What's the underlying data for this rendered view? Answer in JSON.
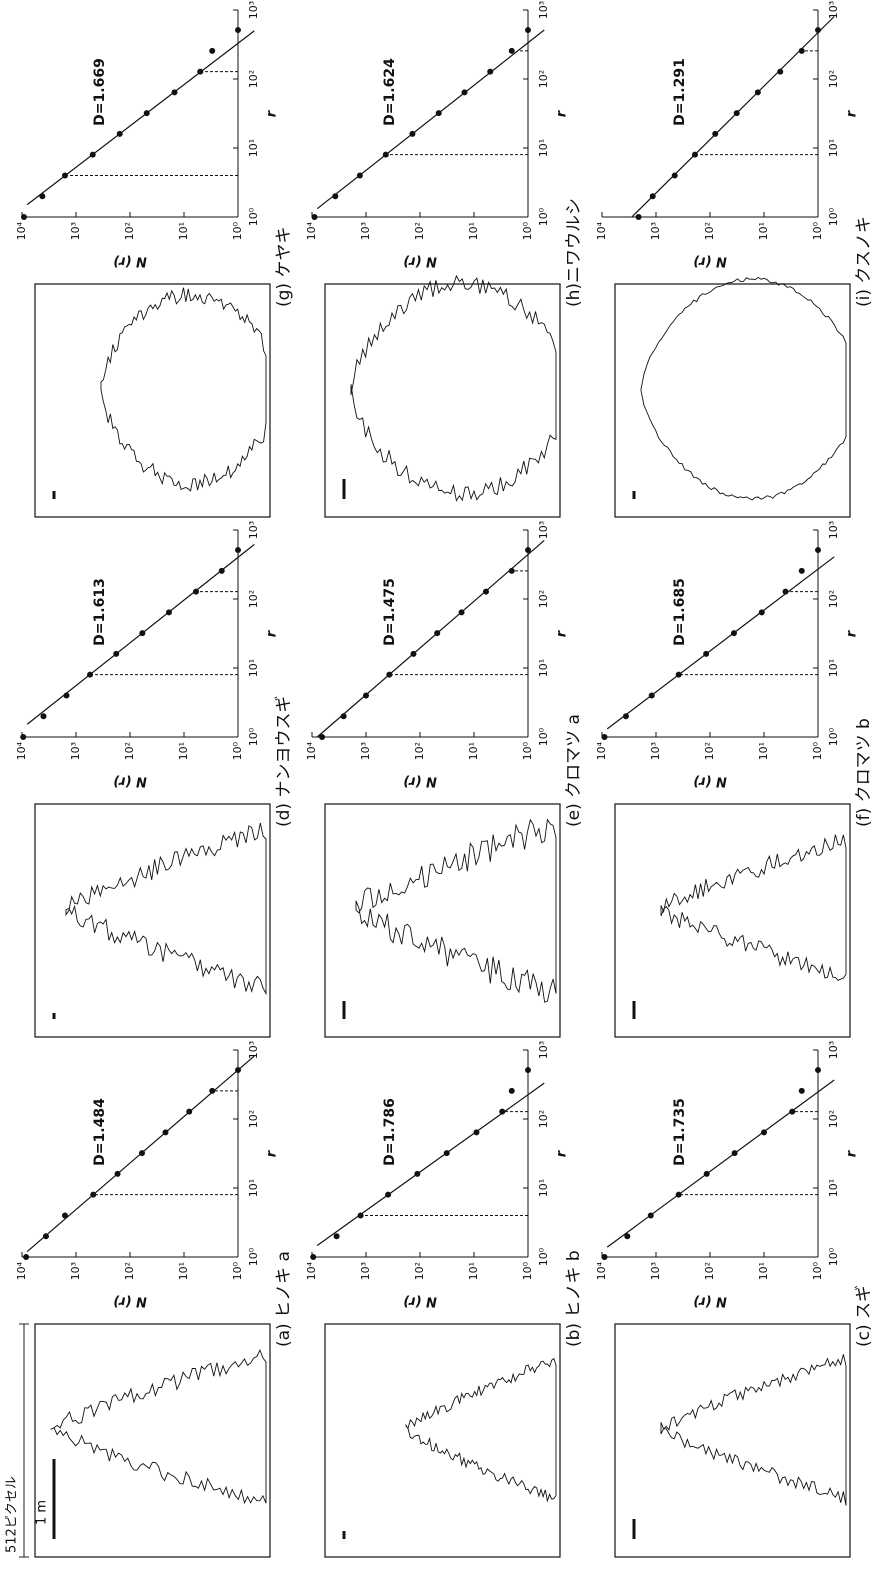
{
  "figure": {
    "size_label": "512ピクセル",
    "scale_label": "1 m"
  },
  "chart_data": [
    {
      "type": "scatter",
      "title": "(a) ヒノキ a",
      "annotation": "D=1.484",
      "xlabel": "r",
      "ylabel": "N (r)",
      "log_scale": true,
      "x": [
        1,
        2,
        4,
        8,
        16,
        32,
        64,
        128,
        256,
        512
      ],
      "values": [
        8400,
        3600,
        1600,
        480,
        170,
        60,
        22,
        8,
        3,
        1
      ],
      "fit": {
        "x": [
          1.2,
          817
        ],
        "y": [
          8000,
          0.5
        ]
      },
      "fit_range": [
        8,
        256
      ],
      "xlim": [
        1,
        1000
      ],
      "ylim": [
        1,
        10000
      ],
      "xticks": [
        {
          "value": 1,
          "label": "10⁰"
        },
        {
          "value": 10,
          "label": "10¹"
        },
        {
          "value": 100,
          "label": "10²"
        },
        {
          "value": 1000,
          "label": "10³"
        }
      ],
      "yticks": [
        {
          "value": 1,
          "label": "10⁰"
        },
        {
          "value": 10,
          "label": "10¹"
        },
        {
          "value": 100,
          "label": "10²"
        },
        {
          "value": 1000,
          "label": "10³"
        },
        {
          "value": 10000,
          "label": "10⁴"
        }
      ]
    },
    {
      "type": "scatter",
      "title": "(b) ヒノキ b",
      "annotation": "D=1.786",
      "xlabel": "r",
      "ylabel": "N (r)",
      "log_scale": true,
      "x": [
        1,
        2,
        4,
        8,
        16,
        32,
        64,
        128,
        256,
        512
      ],
      "values": [
        9500,
        3500,
        1260,
        390,
        112,
        32,
        9,
        3,
        2,
        1
      ],
      "fit": {
        "x": [
          1.47,
          331
        ],
        "y": [
          8000,
          0.5
        ]
      },
      "fit_range": [
        4,
        128
      ],
      "xlim": [
        1,
        1000
      ],
      "ylim": [
        1,
        10000
      ],
      "xticks": [
        {
          "value": 1,
          "label": "10⁰"
        },
        {
          "value": 10,
          "label": "10¹"
        },
        {
          "value": 100,
          "label": "10²"
        },
        {
          "value": 1000,
          "label": "10³"
        }
      ],
      "yticks": [
        {
          "value": 1,
          "label": "10⁰"
        },
        {
          "value": 10,
          "label": "10¹"
        },
        {
          "value": 100,
          "label": "10²"
        },
        {
          "value": 1000,
          "label": "10³"
        },
        {
          "value": 10000,
          "label": "10⁴"
        }
      ]
    },
    {
      "type": "scatter",
      "title": "(c) スギ",
      "annotation": "D=1.735",
      "xlabel": "r",
      "ylabel": "N (r)",
      "log_scale": true,
      "x": [
        1,
        2,
        4,
        8,
        16,
        32,
        64,
        128,
        256,
        512
      ],
      "values": [
        9000,
        3400,
        1250,
        380,
        115,
        35,
        10,
        3,
        2,
        1
      ],
      "fit": {
        "x": [
          1.39,
          368
        ],
        "y": [
          8000,
          0.5
        ]
      },
      "fit_range": [
        8,
        128
      ],
      "xlim": [
        1,
        1000
      ],
      "ylim": [
        1,
        10000
      ],
      "xticks": [
        {
          "value": 1,
          "label": "10⁰"
        },
        {
          "value": 10,
          "label": "10¹"
        },
        {
          "value": 100,
          "label": "10²"
        },
        {
          "value": 1000,
          "label": "10³"
        }
      ],
      "yticks": [
        {
          "value": 1,
          "label": "10⁰"
        },
        {
          "value": 10,
          "label": "10¹"
        },
        {
          "value": 100,
          "label": "10²"
        },
        {
          "value": 1000,
          "label": "10³"
        },
        {
          "value": 10000,
          "label": "10⁴"
        }
      ]
    },
    {
      "type": "scatter",
      "title": "(d) ナンヨウスギ",
      "annotation": "D=1.613",
      "xlabel": "r",
      "ylabel": "N (r)",
      "log_scale": true,
      "x": [
        1,
        2,
        4,
        8,
        16,
        32,
        64,
        128,
        256,
        512
      ],
      "values": [
        9500,
        4000,
        1500,
        550,
        180,
        59,
        19,
        6,
        2,
        1
      ],
      "fit": {
        "x": [
          1.53,
          617
        ],
        "y": [
          8000,
          0.5
        ]
      },
      "fit_range": [
        8,
        128
      ],
      "xlim": [
        1,
        1000
      ],
      "ylim": [
        1,
        10000
      ],
      "xticks": [
        {
          "value": 1,
          "label": "10⁰"
        },
        {
          "value": 10,
          "label": "10¹"
        },
        {
          "value": 100,
          "label": "10²"
        },
        {
          "value": 1000,
          "label": "10³"
        }
      ],
      "yticks": [
        {
          "value": 1,
          "label": "10⁰"
        },
        {
          "value": 10,
          "label": "10¹"
        },
        {
          "value": 100,
          "label": "10²"
        },
        {
          "value": 1000,
          "label": "10³"
        },
        {
          "value": 10000,
          "label": "10⁴"
        }
      ]
    },
    {
      "type": "scatter",
      "title": "(e) クロマツ a",
      "annotation": "D=1.475",
      "xlabel": "r",
      "ylabel": "N (r)",
      "log_scale": true,
      "x": [
        1,
        2,
        4,
        8,
        16,
        32,
        64,
        128,
        256,
        512
      ],
      "values": [
        6500,
        2600,
        1000,
        370,
        132,
        48,
        17,
        6,
        2,
        1
      ],
      "fit": {
        "x": [
          1,
          705
        ],
        "y": [
          8000,
          0.5
        ]
      },
      "fit_range": [
        8,
        256
      ],
      "xlim": [
        1,
        1000
      ],
      "ylim": [
        1,
        10000
      ],
      "xticks": [
        {
          "value": 1,
          "label": "10⁰"
        },
        {
          "value": 10,
          "label": "10¹"
        },
        {
          "value": 100,
          "label": "10²"
        },
        {
          "value": 1000,
          "label": "10³"
        }
      ],
      "yticks": [
        {
          "value": 1,
          "label": "10⁰"
        },
        {
          "value": 10,
          "label": "10¹"
        },
        {
          "value": 100,
          "label": "10²"
        },
        {
          "value": 1000,
          "label": "10³"
        },
        {
          "value": 10000,
          "label": "10⁴"
        }
      ]
    },
    {
      "type": "scatter",
      "title": "(f) クロマツ b",
      "annotation": "D=1.685",
      "xlabel": "r",
      "ylabel": "N (r)",
      "log_scale": true,
      "x": [
        1,
        2,
        4,
        8,
        16,
        32,
        64,
        128,
        256,
        512
      ],
      "values": [
        9000,
        3600,
        1200,
        380,
        118,
        36,
        11,
        4,
        2,
        1
      ],
      "fit": {
        "x": [
          1.31,
          409
        ],
        "y": [
          8000,
          0.5
        ]
      },
      "fit_range": [
        8,
        128
      ],
      "xlim": [
        1,
        1000
      ],
      "ylim": [
        1,
        10000
      ],
      "xticks": [
        {
          "value": 1,
          "label": "10⁰"
        },
        {
          "value": 10,
          "label": "10¹"
        },
        {
          "value": 100,
          "label": "10²"
        },
        {
          "value": 1000,
          "label": "10³"
        }
      ],
      "yticks": [
        {
          "value": 1,
          "label": "10⁰"
        },
        {
          "value": 10,
          "label": "10¹"
        },
        {
          "value": 100,
          "label": "10²"
        },
        {
          "value": 1000,
          "label": "10³"
        },
        {
          "value": 10000,
          "label": "10⁴"
        }
      ]
    },
    {
      "type": "scatter",
      "title": "(g) ケヤキ",
      "annotation": "D=1.669",
      "xlabel": "r",
      "ylabel": "N (r)",
      "log_scale": true,
      "x": [
        1,
        2,
        4,
        8,
        16,
        32,
        64,
        128,
        256,
        512
      ],
      "values": [
        9200,
        4200,
        1600,
        490,
        155,
        49,
        15,
        5,
        3,
        1
      ],
      "fit": {
        "x": [
          1.51,
          498
        ],
        "y": [
          8000,
          0.5
        ]
      },
      "fit_range": [
        4,
        128
      ],
      "xlim": [
        1,
        1000
      ],
      "ylim": [
        1,
        10000
      ],
      "xticks": [
        {
          "value": 1,
          "label": "10⁰"
        },
        {
          "value": 10,
          "label": "10¹"
        },
        {
          "value": 100,
          "label": "10²"
        },
        {
          "value": 1000,
          "label": "10³"
        }
      ],
      "yticks": [
        {
          "value": 1,
          "label": "10⁰"
        },
        {
          "value": 10,
          "label": "10¹"
        },
        {
          "value": 100,
          "label": "10²"
        },
        {
          "value": 1000,
          "label": "10³"
        },
        {
          "value": 10000,
          "label": "10⁴"
        }
      ]
    },
    {
      "type": "scatter",
      "title": "(h)ニワウルシ",
      "annotation": "D=1.624",
      "xlabel": "r",
      "ylabel": "N (r)",
      "log_scale": true,
      "x": [
        1,
        2,
        4,
        8,
        16,
        32,
        64,
        128,
        256,
        512
      ],
      "values": [
        9000,
        3700,
        1300,
        430,
        138,
        45,
        15,
        5,
        2,
        1
      ],
      "fit": {
        "x": [
          1.32,
          513
        ],
        "y": [
          8000,
          0.5
        ]
      },
      "fit_range": [
        8,
        256
      ],
      "xlim": [
        1,
        1000
      ],
      "ylim": [
        1,
        10000
      ],
      "xticks": [
        {
          "value": 1,
          "label": "10⁰"
        },
        {
          "value": 10,
          "label": "10¹"
        },
        {
          "value": 100,
          "label": "10²"
        },
        {
          "value": 1000,
          "label": "10³"
        }
      ],
      "yticks": [
        {
          "value": 1,
          "label": "10⁰"
        },
        {
          "value": 10,
          "label": "10¹"
        },
        {
          "value": 100,
          "label": "10²"
        },
        {
          "value": 1000,
          "label": "10³"
        },
        {
          "value": 10000,
          "label": "10⁴"
        }
      ]
    },
    {
      "type": "scatter",
      "title": "(i) クスノキ",
      "annotation": "D=1.291",
      "xlabel": "r",
      "ylabel": "N (r)",
      "log_scale": true,
      "x": [
        1,
        2,
        4,
        8,
        16,
        32,
        64,
        128,
        256,
        512
      ],
      "values": [
        2100,
        1150,
        450,
        190,
        80,
        32,
        13,
        5,
        2,
        1
      ],
      "fit": {
        "x": [
          1,
          805
        ],
        "y": [
          2800,
          0.5
        ]
      },
      "fit_range": [
        8,
        256
      ],
      "xlim": [
        1,
        1000
      ],
      "ylim": [
        1,
        10000
      ],
      "xticks": [
        {
          "value": 1,
          "label": "10⁰"
        },
        {
          "value": 10,
          "label": "10¹"
        },
        {
          "value": 100,
          "label": "10²"
        },
        {
          "value": 1000,
          "label": "10³"
        }
      ],
      "yticks": [
        {
          "value": 1,
          "label": "10⁰"
        },
        {
          "value": 10,
          "label": "10¹"
        },
        {
          "value": 100,
          "label": "10²"
        },
        {
          "value": 1000,
          "label": "10³"
        },
        {
          "value": 10000,
          "label": "10⁴"
        }
      ]
    }
  ]
}
